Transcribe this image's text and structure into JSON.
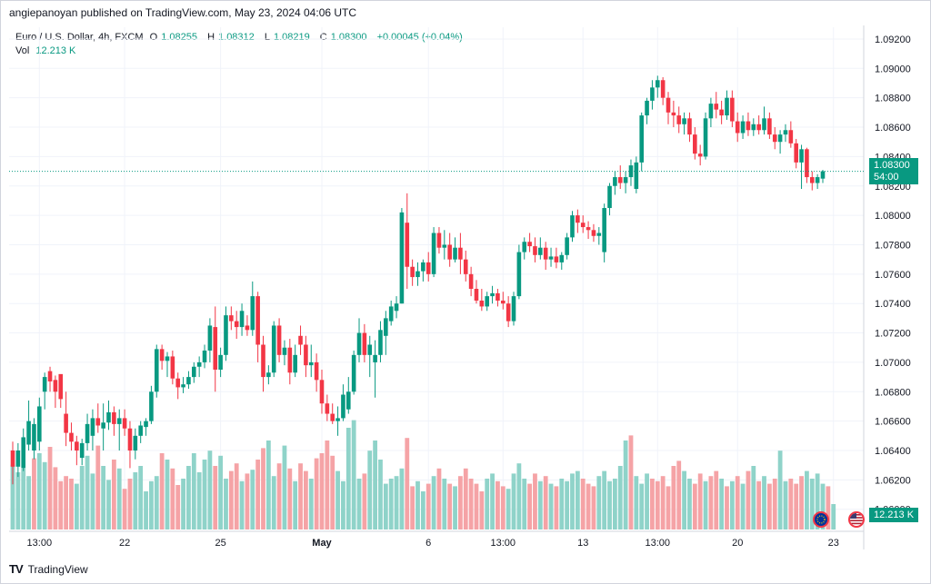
{
  "header": {
    "published_line": "angiepanoyan published on TradingView.com, May 23, 2024 04:06 UTC"
  },
  "legend": {
    "symbol": "Euro / U.S. Dollar, 4h, FXCM",
    "o_label": "O",
    "o": "1.08255",
    "h_label": "H",
    "h": "1.08312",
    "l_label": "L",
    "l": "1.08219",
    "c_label": "C",
    "c": "1.08300",
    "change": "+0.00045 (+0.04%)",
    "vol_label": "Vol",
    "vol": "12.213 K"
  },
  "price_tag": {
    "price": "1.08300",
    "countdown": "54:00"
  },
  "volume_tag": "12.213 K",
  "footer": {
    "brand": "TradingView"
  },
  "colors": {
    "up": "#089981",
    "down": "#f23645",
    "vol_up": "#8fd3c9",
    "vol_down": "#f5a3a6",
    "grid": "#f0f3fa",
    "text": "#131722"
  },
  "chart_data": {
    "type": "candlestick",
    "interval": "4h",
    "y_axis_ticks": [
      "1.09200",
      "1.09000",
      "1.08800",
      "1.08600",
      "1.08400",
      "1.08200",
      "1.08000",
      "1.07800",
      "1.07600",
      "1.07400",
      "1.07200",
      "1.07000",
      "1.06800",
      "1.06600",
      "1.06400",
      "1.06200",
      "1.06000"
    ],
    "ylim": [
      1.0585,
      1.0928
    ],
    "x_axis_ticks": [
      {
        "label": "13:00",
        "index": 5
      },
      {
        "label": "22",
        "index": 21
      },
      {
        "label": "25",
        "index": 39
      },
      {
        "label": "May",
        "index": 58
      },
      {
        "label": "6",
        "index": 78
      },
      {
        "label": "13:00",
        "index": 92
      },
      {
        "label": "13",
        "index": 107
      },
      {
        "label": "13:00",
        "index": 121
      },
      {
        "label": "20",
        "index": 136
      },
      {
        "label": "23",
        "index": 154
      }
    ],
    "last_price": 1.083,
    "events": [
      "flag-eu",
      "flag-us"
    ],
    "candles": [
      [
        1.064,
        1.0646,
        1.0617,
        1.0629
      ],
      [
        1.0629,
        1.0645,
        1.0622,
        1.064
      ],
      [
        1.0628,
        1.0655,
        1.0626,
        1.0649
      ],
      [
        1.0644,
        1.0674,
        1.064,
        1.066
      ],
      [
        1.064,
        1.0662,
        1.0634,
        1.0658
      ],
      [
        1.0646,
        1.0676,
        1.064,
        1.067
      ],
      [
        1.068,
        1.0693,
        1.0668,
        1.069
      ],
      [
        1.0694,
        1.0697,
        1.068,
        1.0687
      ],
      [
        1.0688,
        1.0691,
        1.0669,
        1.068
      ],
      [
        1.0692,
        1.0691,
        1.0669,
        1.0675
      ],
      [
        1.0665,
        1.068,
        1.0643,
        1.0652
      ],
      [
        1.0652,
        1.0659,
        1.064,
        1.0646
      ],
      [
        1.0646,
        1.065,
        1.063,
        1.064
      ],
      [
        1.0635,
        1.0648,
        1.063,
        1.0645
      ],
      [
        1.0645,
        1.0665,
        1.064,
        1.0658
      ],
      [
        1.065,
        1.0668,
        1.064,
        1.0662
      ],
      [
        1.0662,
        1.0672,
        1.0652,
        1.0657
      ],
      [
        1.0655,
        1.0672,
        1.064,
        1.0659
      ],
      [
        1.0659,
        1.0674,
        1.0654,
        1.0666
      ],
      [
        1.0666,
        1.067,
        1.065,
        1.0658
      ],
      [
        1.0658,
        1.0668,
        1.064,
        1.0662
      ],
      [
        1.0662,
        1.0668,
        1.065,
        1.0655
      ],
      [
        1.0655,
        1.066,
        1.0628,
        1.064
      ],
      [
        1.064,
        1.0655,
        1.0634,
        1.065
      ],
      [
        1.065,
        1.066,
        1.0645,
        1.0657
      ],
      [
        1.0656,
        1.0662,
        1.065,
        1.066
      ],
      [
        1.066,
        1.0684,
        1.0658,
        1.068
      ],
      [
        1.068,
        1.0712,
        1.0676,
        1.0709
      ],
      [
        1.0709,
        1.0712,
        1.0695,
        1.0701
      ],
      [
        1.0701,
        1.0707,
        1.069,
        1.0704
      ],
      [
        1.0704,
        1.0708,
        1.0685,
        1.0689
      ],
      [
        1.0689,
        1.0693,
        1.0675,
        1.0683
      ],
      [
        1.0683,
        1.069,
        1.0679,
        1.0685
      ],
      [
        1.0685,
        1.0694,
        1.0682,
        1.069
      ],
      [
        1.069,
        1.07,
        1.0686,
        1.0697
      ],
      [
        1.0697,
        1.0704,
        1.069,
        1.07
      ],
      [
        1.07,
        1.0712,
        1.0696,
        1.0708
      ],
      [
        1.0708,
        1.073,
        1.07,
        1.0725
      ],
      [
        1.0724,
        1.0738,
        1.068,
        1.0695
      ],
      [
        1.0695,
        1.071,
        1.069,
        1.0705
      ],
      [
        1.0705,
        1.0738,
        1.0701,
        1.0732
      ],
      [
        1.0732,
        1.0738,
        1.0722,
        1.0728
      ],
      [
        1.0728,
        1.0735,
        1.0716,
        1.0724
      ],
      [
        1.0724,
        1.074,
        1.0718,
        1.0735
      ],
      [
        1.0725,
        1.0732,
        1.0718,
        1.0722
      ],
      [
        1.0722,
        1.0755,
        1.0718,
        1.0745
      ],
      [
        1.0745,
        1.0748,
        1.07,
        1.0712
      ],
      [
        1.0712,
        1.0718,
        1.068,
        1.069
      ],
      [
        1.069,
        1.0698,
        1.0685,
        1.0693
      ],
      [
        1.0693,
        1.0728,
        1.069,
        1.0725
      ],
      [
        1.0725,
        1.073,
        1.07,
        1.0705
      ],
      [
        1.0705,
        1.0715,
        1.0698,
        1.071
      ],
      [
        1.071,
        1.0716,
        1.0685,
        1.0693
      ],
      [
        1.0693,
        1.0712,
        1.069,
        1.0705
      ],
      [
        1.0718,
        1.0725,
        1.0705,
        1.0712
      ],
      [
        1.0712,
        1.0718,
        1.069,
        1.0698
      ],
      [
        1.0698,
        1.0712,
        1.069,
        1.07
      ],
      [
        1.07,
        1.0706,
        1.068,
        1.0688
      ],
      [
        1.0688,
        1.0695,
        1.0665,
        1.0672
      ],
      [
        1.0672,
        1.0678,
        1.066,
        1.0665
      ],
      [
        1.0665,
        1.0672,
        1.0658,
        1.066
      ],
      [
        1.066,
        1.067,
        1.065,
        1.0662
      ],
      [
        1.0662,
        1.0685,
        1.066,
        1.0678
      ],
      [
        1.0668,
        1.069,
        1.0665,
        1.068
      ],
      [
        1.068,
        1.0708,
        1.0678,
        1.0705
      ],
      [
        1.0705,
        1.073,
        1.07,
        1.072
      ],
      [
        1.072,
        1.0726,
        1.07,
        1.0705
      ],
      [
        1.0705,
        1.0718,
        1.069,
        1.0712
      ],
      [
        1.07,
        1.0715,
        1.0676,
        1.0705
      ],
      [
        1.0705,
        1.0728,
        1.07,
        1.0722
      ],
      [
        1.0718,
        1.0735,
        1.0705,
        1.073
      ],
      [
        1.0728,
        1.0742,
        1.0725,
        1.0738
      ],
      [
        1.0735,
        1.0745,
        1.073,
        1.074
      ],
      [
        1.074,
        1.0805,
        1.074,
        1.0802
      ],
      [
        1.0795,
        1.0815,
        1.075,
        1.0765
      ],
      [
        1.0765,
        1.077,
        1.0752,
        1.0758
      ],
      [
        1.0758,
        1.0768,
        1.0752,
        1.0762
      ],
      [
        1.0762,
        1.077,
        1.0755,
        1.0768
      ],
      [
        1.0768,
        1.0775,
        1.0755,
        1.076
      ],
      [
        1.076,
        1.0792,
        1.0758,
        1.0788
      ],
      [
        1.0788,
        1.0792,
        1.0774,
        1.0778
      ],
      [
        1.0778,
        1.079,
        1.077,
        1.078
      ],
      [
        1.078,
        1.0788,
        1.0765,
        1.077
      ],
      [
        1.077,
        1.0785,
        1.0768,
        1.0778
      ],
      [
        1.0778,
        1.0788,
        1.076,
        1.077
      ],
      [
        1.077,
        1.0776,
        1.0755,
        1.076
      ],
      [
        1.076,
        1.0765,
        1.0745,
        1.075
      ],
      [
        1.075,
        1.0756,
        1.074,
        1.0742
      ],
      [
        1.0742,
        1.075,
        1.0735,
        1.0738
      ],
      [
        1.0738,
        1.0748,
        1.0735,
        1.0745
      ],
      [
        1.0745,
        1.0752,
        1.074,
        1.0747
      ],
      [
        1.0747,
        1.075,
        1.0738,
        1.0742
      ],
      [
        1.0742,
        1.0748,
        1.0736,
        1.074
      ],
      [
        1.074,
        1.0745,
        1.0724,
        1.0728
      ],
      [
        1.0728,
        1.0748,
        1.0725,
        1.0745
      ],
      [
        1.0745,
        1.078,
        1.0743,
        1.0775
      ],
      [
        1.0775,
        1.0785,
        1.077,
        1.0782
      ],
      [
        1.0782,
        1.0788,
        1.0775,
        1.0779
      ],
      [
        1.0779,
        1.0785,
        1.0768,
        1.0773
      ],
      [
        1.0773,
        1.0785,
        1.077,
        1.0778
      ],
      [
        1.0778,
        1.0782,
        1.0763,
        1.077
      ],
      [
        1.077,
        1.0778,
        1.0765,
        1.0772
      ],
      [
        1.0772,
        1.0778,
        1.0764,
        1.0768
      ],
      [
        1.0768,
        1.0775,
        1.0763,
        1.0773
      ],
      [
        1.0773,
        1.0788,
        1.077,
        1.0785
      ],
      [
        1.0785,
        1.0803,
        1.0782,
        1.08
      ],
      [
        1.08,
        1.0804,
        1.0788,
        1.0795
      ],
      [
        1.0795,
        1.08,
        1.0788,
        1.0792
      ],
      [
        1.0792,
        1.0796,
        1.0784,
        1.079
      ],
      [
        1.079,
        1.0794,
        1.0782,
        1.0786
      ],
      [
        1.0786,
        1.0792,
        1.078,
        1.0788
      ],
      [
        1.0775,
        1.0808,
        1.0768,
        1.0805
      ],
      [
        1.0805,
        1.0822,
        1.08,
        1.082
      ],
      [
        1.082,
        1.083,
        1.0814,
        1.0826
      ],
      [
        1.0826,
        1.0834,
        1.0818,
        1.0822
      ],
      [
        1.0822,
        1.083,
        1.0815,
        1.0826
      ],
      [
        1.0826,
        1.0838,
        1.082,
        1.0834
      ],
      [
        1.0818,
        1.084,
        1.0815,
        1.0836
      ],
      [
        1.0836,
        1.087,
        1.083,
        1.0868
      ],
      [
        1.0868,
        1.088,
        1.0862,
        1.0878
      ],
      [
        1.0878,
        1.0892,
        1.0872,
        1.0887
      ],
      [
        1.0887,
        1.0895,
        1.088,
        1.0892
      ],
      [
        1.0892,
        1.0894,
        1.0875,
        1.088
      ],
      [
        1.088,
        1.0884,
        1.0862,
        1.087
      ],
      [
        1.087,
        1.0878,
        1.086,
        1.0868
      ],
      [
        1.0868,
        1.0874,
        1.0856,
        1.0862
      ],
      [
        1.0862,
        1.087,
        1.0855,
        1.0866
      ],
      [
        1.0866,
        1.087,
        1.085,
        1.0855
      ],
      [
        1.0855,
        1.086,
        1.0838,
        1.0842
      ],
      [
        1.0842,
        1.0848,
        1.0834,
        1.084
      ],
      [
        1.084,
        1.087,
        1.0838,
        1.0866
      ],
      [
        1.0866,
        1.088,
        1.086,
        1.0876
      ],
      [
        1.0876,
        1.0884,
        1.0866,
        1.0872
      ],
      [
        1.0872,
        1.0878,
        1.0862,
        1.0868
      ],
      [
        1.0868,
        1.0885,
        1.0865,
        1.088
      ],
      [
        1.088,
        1.0885,
        1.086,
        1.0864
      ],
      [
        1.0864,
        1.087,
        1.085,
        1.0856
      ],
      [
        1.0856,
        1.0868,
        1.0852,
        1.0864
      ],
      [
        1.0864,
        1.087,
        1.0854,
        1.0858
      ],
      [
        1.0858,
        1.0866,
        1.0854,
        1.0862
      ],
      [
        1.0862,
        1.0868,
        1.0855,
        1.0858
      ],
      [
        1.0858,
        1.0874,
        1.0855,
        1.0866
      ],
      [
        1.0866,
        1.087,
        1.0852,
        1.0855
      ],
      [
        1.0855,
        1.086,
        1.0845,
        1.085
      ],
      [
        1.085,
        1.0858,
        1.0842,
        1.0855
      ],
      [
        1.0855,
        1.0862,
        1.085,
        1.0858
      ],
      [
        1.0858,
        1.0864,
        1.0846,
        1.0849
      ],
      [
        1.0849,
        1.0852,
        1.0832,
        1.0836
      ],
      [
        1.0836,
        1.0848,
        1.0818,
        1.0845
      ],
      [
        1.0845,
        1.0846,
        1.0822,
        1.0826
      ],
      [
        1.0826,
        1.083,
        1.0817,
        1.0822
      ],
      [
        1.0822,
        1.0828,
        1.0818,
        1.0826
      ],
      [
        1.0825,
        1.0831,
        1.0822,
        1.083
      ]
    ],
    "volume": [
      51,
      45,
      48,
      42,
      56,
      60,
      53,
      65,
      49,
      38,
      42,
      40,
      36,
      50,
      58,
      44,
      66,
      50,
      39,
      55,
      48,
      32,
      40,
      45,
      50,
      30,
      38,
      42,
      60,
      55,
      48,
      35,
      40,
      50,
      60,
      45,
      55,
      62,
      50,
      58,
      40,
      46,
      52,
      38,
      44,
      47,
      55,
      64,
      70,
      42,
      52,
      66,
      48,
      38,
      52,
      46,
      40,
      56,
      60,
      70,
      58,
      46,
      38,
      80,
      86,
      40,
      44,
      62,
      70,
      55,
      36,
      40,
      42,
      48,
      72,
      34,
      38,
      30,
      36,
      42,
      48,
      40,
      36,
      34,
      42,
      48,
      40,
      36,
      30,
      40,
      44,
      38,
      34,
      32,
      44,
      52,
      40,
      36,
      44,
      38,
      42,
      36,
      34,
      40,
      38,
      44,
      46,
      40,
      36,
      34,
      42,
      46,
      38,
      40,
      50,
      70,
      74,
      42,
      36,
      44,
      40,
      38,
      42,
      34,
      50,
      54,
      46,
      40,
      36,
      44,
      38,
      42,
      46,
      40,
      34,
      38,
      42,
      36,
      46,
      50,
      38,
      42,
      36,
      40,
      62,
      38,
      40,
      36,
      42,
      46,
      40,
      44,
      36,
      34,
      20
    ],
    "volume_up": [
      true,
      true,
      true,
      true,
      false,
      true,
      true,
      false,
      false,
      false,
      false,
      false,
      true,
      true,
      true,
      true,
      false,
      true,
      true,
      false,
      true,
      false,
      false,
      true,
      true,
      true,
      true,
      true,
      false,
      true,
      false,
      false,
      true,
      true,
      true,
      true,
      true,
      true,
      false,
      true,
      true,
      false,
      false,
      true,
      false,
      true,
      false,
      false,
      true,
      true,
      false,
      true,
      false,
      true,
      false,
      false,
      true,
      false,
      false,
      false,
      false,
      true,
      true,
      true,
      true,
      true,
      false,
      true,
      true,
      true,
      true,
      true,
      true,
      true,
      false,
      false,
      true,
      true,
      false,
      true,
      false,
      true,
      false,
      true,
      false,
      false,
      false,
      false,
      false,
      true,
      true,
      false,
      false,
      true,
      true,
      true,
      true,
      false,
      false,
      true,
      false,
      true,
      false,
      true,
      true,
      true,
      true,
      false,
      false,
      false,
      true,
      true,
      true,
      true,
      true,
      true,
      false,
      true,
      true,
      true,
      false,
      false,
      false,
      false,
      false,
      false,
      true,
      true,
      false,
      false,
      true,
      false,
      false,
      true,
      false,
      true,
      false,
      true,
      false,
      true,
      false,
      true,
      false,
      false,
      true,
      true,
      false,
      false,
      false,
      true,
      true,
      true,
      true,
      false,
      true
    ]
  }
}
